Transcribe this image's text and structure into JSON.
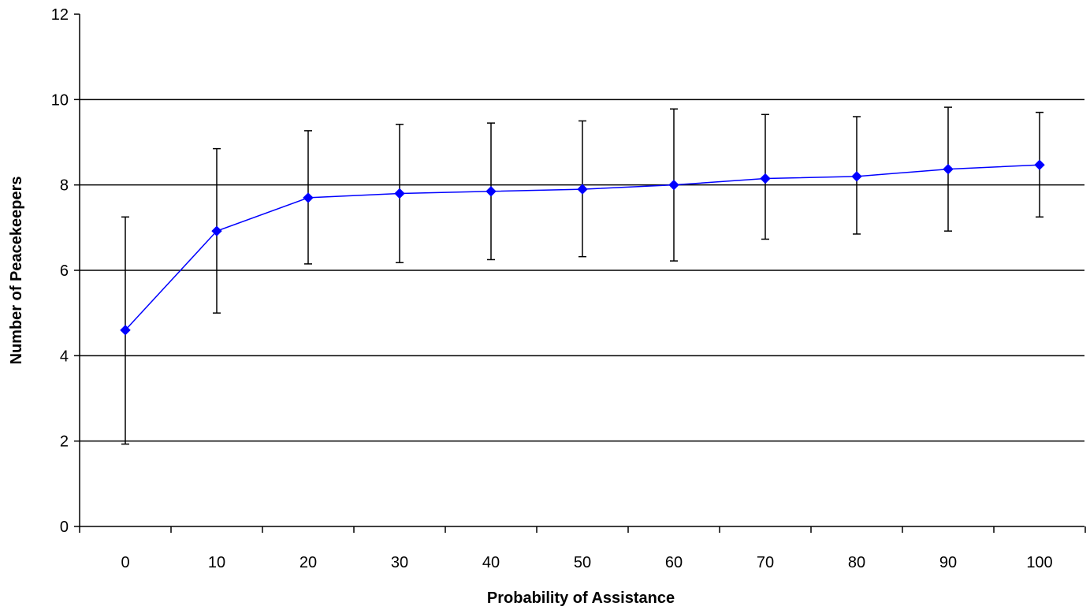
{
  "chart_data": {
    "type": "line",
    "title": "",
    "xlabel": "Probability of Assistance",
    "ylabel": "Number of Peacekeepers",
    "x": [
      0,
      10,
      20,
      30,
      40,
      50,
      60,
      70,
      80,
      90,
      100
    ],
    "x_tick_labels": [
      "0",
      "10",
      "20",
      "30",
      "40",
      "50",
      "60",
      "70",
      "80",
      "90",
      "100"
    ],
    "ylim": [
      0,
      12
    ],
    "y_ticks": [
      0,
      2,
      4,
      6,
      8,
      10,
      12
    ],
    "y_tick_labels": [
      "0",
      "2",
      "4",
      "6",
      "8",
      "10",
      "12"
    ],
    "grid": true,
    "legend": "none",
    "series": [
      {
        "values": [
          4.6,
          6.92,
          7.7,
          7.8,
          7.85,
          7.9,
          8.0,
          8.15,
          8.2,
          8.37,
          8.47
        ],
        "error_upper": [
          7.25,
          8.85,
          9.27,
          9.42,
          9.45,
          9.5,
          9.78,
          9.65,
          9.6,
          9.82,
          9.7
        ],
        "error_lower": [
          1.93,
          5.0,
          6.15,
          6.18,
          6.25,
          6.32,
          6.22,
          6.73,
          6.85,
          6.92,
          7.25
        ],
        "color": "#0000ff"
      }
    ],
    "colors": {
      "line": "#0000ff",
      "marker": "#0000ff",
      "error_bar": "#000000",
      "gridline": "#000000",
      "axis": "#000000"
    }
  }
}
